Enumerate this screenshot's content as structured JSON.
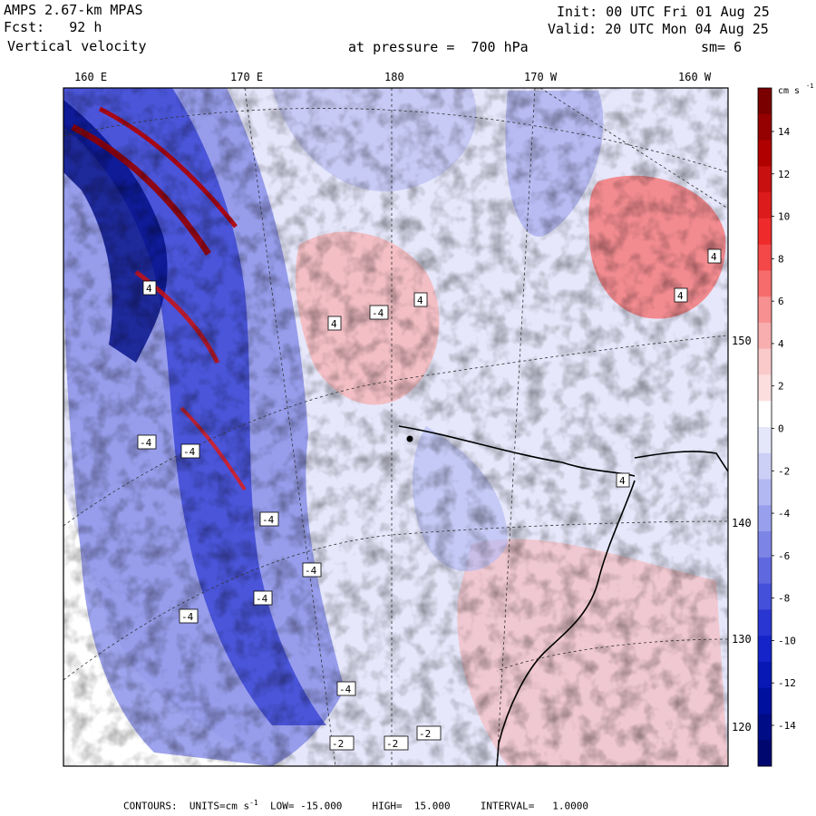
{
  "header": {
    "model_line": "AMPS 2.67-km MPAS",
    "fcst_line": "Fcst:   92 h",
    "field_line": "Vertical velocity",
    "init_line": "Init: 00 UTC Fri 01 Aug 25",
    "valid_line": "Valid: 20 UTC Mon 04 Aug 25",
    "pressure_line": "at pressure =  700 hPa",
    "smooth_line": "sm= 6"
  },
  "map": {
    "top_lon_labels": [
      "160 E",
      "170 E",
      "180",
      "170 W",
      "160 W"
    ],
    "right_lat_labels": [
      "150 W",
      "140 W",
      "130 W",
      "120 W"
    ],
    "contour_box_labels": [
      "4",
      "4",
      "4",
      "4",
      "4",
      "4",
      "-4",
      "-4",
      "-4",
      "-4",
      "-4",
      "-4",
      "-4",
      "-4",
      "-2",
      "-2",
      "-2"
    ]
  },
  "colorbar": {
    "unit_label": "cm s",
    "unit_exp": "-1",
    "tick_labels": [
      "14",
      "12",
      "10",
      "8",
      "6",
      "4",
      "2",
      "0",
      "-2",
      "-4",
      "-6",
      "-8",
      "-10",
      "-12",
      "-14"
    ],
    "colors_top_to_bottom": [
      "#7a0000",
      "#950000",
      "#b00000",
      "#c81010",
      "#dc1c1c",
      "#ee2a2a",
      "#f44848",
      "#f66c6c",
      "#f79090",
      "#f8aeae",
      "#facaca",
      "#fcdede",
      "#ffffff",
      "#e4e6fa",
      "#ccd0f6",
      "#b2b8f2",
      "#989fec",
      "#7c84e6",
      "#6068e0",
      "#4450da",
      "#2a36d2",
      "#1424c8",
      "#0818b4",
      "#00109e",
      "#000c86",
      "#000870"
    ]
  },
  "footer": {
    "text": "CONTOURS:  UNITS=cm s",
    "unit_exp": "-1",
    "rest": "  LOW= -15.000     HIGH=  15.000     INTERVAL=   1.0000"
  }
}
